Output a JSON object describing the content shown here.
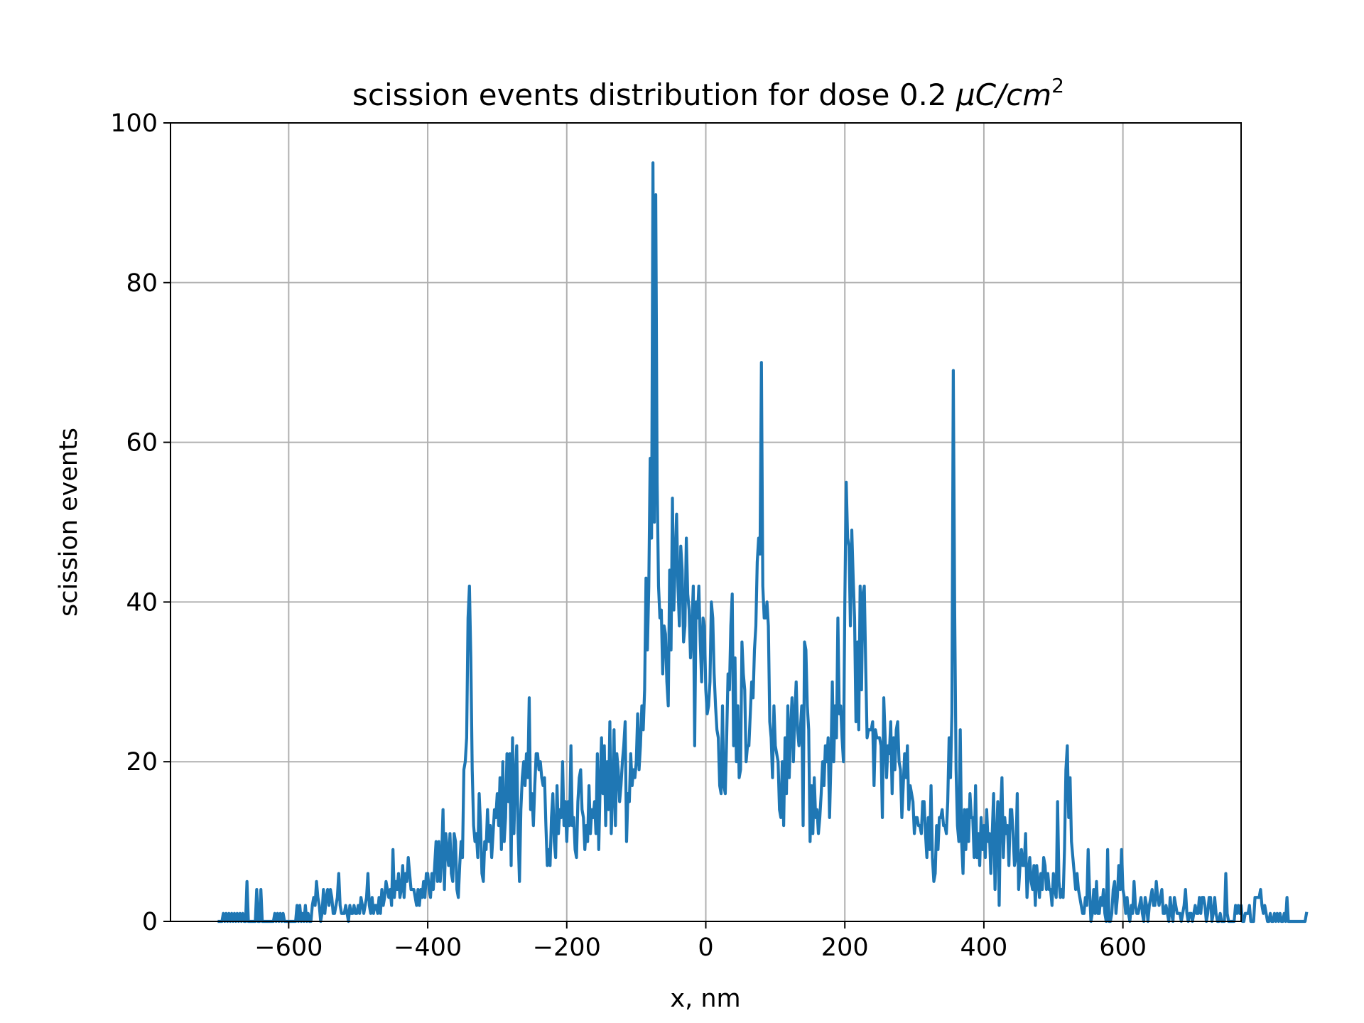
{
  "chart_data": {
    "type": "line",
    "title_main": "scission events distribution for dose 0.2 ",
    "title_math": "μC/cm",
    "title_sup": "2",
    "xlabel": "x, nm",
    "ylabel": "scission events",
    "xlim": [
      -770,
      770
    ],
    "ylim": [
      0,
      100
    ],
    "xticks": [
      -600,
      -400,
      -200,
      0,
      200,
      400,
      600
    ],
    "xtick_labels": [
      "−600",
      "−400",
      "−200",
      "0",
      "200",
      "400",
      "600"
    ],
    "yticks": [
      0,
      20,
      40,
      60,
      80,
      100
    ],
    "ytick_labels": [
      "0",
      "20",
      "40",
      "60",
      "80",
      "100"
    ],
    "grid": true,
    "legend": "none",
    "series": [
      {
        "color": "#1f77b4",
        "x_start": -700,
        "x_step": 2,
        "values": [
          0,
          0,
          0,
          1,
          0,
          1,
          0,
          1,
          0,
          1,
          0,
          1,
          0,
          1,
          0,
          1,
          0,
          1,
          0,
          0,
          5,
          0,
          0,
          0,
          0,
          0,
          0,
          4,
          0,
          0,
          4,
          0,
          0,
          0,
          0,
          0,
          0,
          0,
          0,
          0,
          1,
          0,
          1,
          0,
          1,
          0,
          1,
          0,
          0,
          0,
          0,
          0,
          0,
          0,
          0,
          0,
          2,
          0,
          2,
          0,
          1,
          0,
          2,
          0,
          1,
          0,
          0,
          2,
          3,
          2,
          5,
          3,
          2,
          0,
          1,
          4,
          1,
          3,
          4,
          2,
          4,
          3,
          1,
          1,
          2,
          3,
          6,
          2,
          1,
          1,
          1,
          2,
          1,
          0,
          2,
          1,
          1,
          2,
          1,
          1,
          2,
          1,
          3,
          2,
          1,
          2,
          3,
          6,
          2,
          1,
          3,
          1,
          2,
          2,
          1,
          3,
          1,
          4,
          2,
          3,
          5,
          4,
          3,
          4,
          2,
          9,
          3,
          5,
          4,
          6,
          3,
          4,
          7,
          3,
          6,
          5,
          8,
          6,
          4,
          4,
          4,
          3,
          2,
          4,
          2,
          4,
          3,
          5,
          3,
          6,
          6,
          4,
          3,
          6,
          4,
          7,
          10,
          5,
          10,
          5,
          8,
          14,
          4,
          11,
          9,
          7,
          11,
          6,
          5,
          11,
          10,
          4,
          3,
          7,
          10,
          8,
          19,
          20,
          23,
          38,
          42,
          33,
          19,
          12,
          10,
          11,
          8,
          16,
          12,
          6,
          5,
          10,
          9,
          14,
          10,
          12,
          8,
          11,
          14,
          13,
          16,
          12,
          18,
          9,
          20,
          10,
          13,
          21,
          15,
          21,
          7,
          23,
          11,
          18,
          22,
          11,
          5,
          14,
          18,
          20,
          17,
          21,
          18,
          28,
          14,
          16,
          12,
          17,
          21,
          21,
          19,
          20,
          18,
          17,
          18,
          12,
          7,
          9,
          7,
          13,
          16,
          10,
          8,
          17,
          11,
          14,
          13,
          20,
          12,
          15,
          10,
          15,
          12,
          22,
          12,
          13,
          9,
          8,
          15,
          18,
          19,
          14,
          13,
          9,
          12,
          10,
          17,
          11,
          14,
          13,
          15,
          11,
          21,
          9,
          17,
          23,
          16,
          22,
          12,
          20,
          14,
          25,
          11,
          16,
          24,
          12,
          21,
          19,
          15,
          17,
          20,
          22,
          25,
          10,
          16,
          15,
          21,
          17,
          19,
          18,
          20,
          26,
          19,
          22,
          27,
          24,
          29,
          43,
          34,
          42,
          58,
          48,
          95,
          50,
          91,
          55,
          42,
          38,
          39,
          31,
          37,
          36,
          30,
          27,
          44,
          34,
          53,
          39,
          45,
          51,
          42,
          37,
          47,
          44,
          35,
          37,
          48,
          41,
          39,
          33,
          37,
          42,
          22,
          40,
          38,
          42,
          35,
          30,
          38,
          37,
          29,
          26,
          27,
          30,
          40,
          38,
          31,
          27,
          24,
          23,
          17,
          16,
          27,
          17,
          16,
          23,
          31,
          29,
          37,
          41,
          22,
          33,
          20,
          27,
          18,
          19,
          35,
          31,
          29,
          20,
          22,
          22,
          26,
          30,
          28,
          34,
          37,
          45,
          48,
          46,
          70,
          42,
          38,
          38,
          40,
          37,
          25,
          23,
          18,
          27,
          22,
          21,
          20,
          14,
          13,
          20,
          12,
          23,
          16,
          27,
          18,
          24,
          28,
          20,
          26,
          30,
          24,
          22,
          24,
          27,
          12,
          35,
          34,
          27,
          24,
          10,
          17,
          11,
          18,
          13,
          14,
          11,
          13,
          16,
          20,
          17,
          22,
          20,
          23,
          13,
          20,
          30,
          20,
          27,
          23,
          38,
          26,
          27,
          23,
          20,
          40,
          55,
          48,
          47,
          37,
          49,
          43,
          38,
          25,
          35,
          24,
          42,
          29,
          41,
          42,
          32,
          23,
          24,
          24,
          24,
          25,
          17,
          24,
          23,
          23,
          23,
          22,
          13,
          28,
          23,
          18,
          22,
          21,
          25,
          16,
          23,
          19,
          24,
          25,
          20,
          19,
          13,
          17,
          21,
          18,
          22,
          14,
          17,
          16,
          15,
          11,
          13,
          13,
          12,
          12,
          11,
          15,
          15,
          11,
          8,
          13,
          9,
          17,
          8,
          5,
          6,
          12,
          9,
          13,
          13,
          14,
          12,
          12,
          11,
          15,
          23,
          18,
          26,
          69,
          39,
          19,
          12,
          10,
          24,
          10,
          6,
          14,
          9,
          14,
          10,
          16,
          13,
          13,
          8,
          17,
          8,
          11,
          7,
          13,
          9,
          12,
          8,
          14,
          10,
          11,
          6,
          11,
          16,
          4,
          10,
          15,
          2,
          14,
          18,
          8,
          13,
          11,
          12,
          7,
          14,
          14,
          11,
          7,
          8,
          16,
          4,
          7,
          9,
          7,
          7,
          11,
          3,
          6,
          8,
          5,
          4,
          7,
          2,
          7,
          5,
          3,
          6,
          4,
          8,
          7,
          4,
          6,
          4,
          4,
          2,
          6,
          4,
          3,
          15,
          5,
          3,
          4,
          3,
          9,
          19,
          22,
          13,
          18,
          10,
          8,
          6,
          4,
          6,
          4,
          3,
          2,
          1,
          1,
          3,
          2,
          9,
          4,
          0,
          1,
          4,
          1,
          5,
          1,
          1,
          3,
          2,
          4,
          1,
          0,
          9,
          0,
          0,
          1,
          4,
          5,
          1,
          3,
          7,
          4,
          9,
          4,
          3,
          1,
          3,
          1,
          0,
          2,
          1,
          5,
          2,
          1,
          1,
          2,
          3,
          1,
          0,
          3,
          2,
          0,
          2,
          3,
          4,
          2,
          2,
          5,
          3,
          2,
          3,
          4,
          1,
          1,
          2,
          1,
          0,
          3,
          1,
          0,
          3,
          2,
          1,
          1,
          1,
          0,
          1,
          2,
          4,
          1,
          0,
          1,
          1,
          0,
          1,
          2,
          1,
          1,
          3,
          1,
          3,
          3,
          2,
          0,
          1,
          3,
          3,
          0,
          1,
          3,
          1,
          0,
          0,
          1,
          0,
          0,
          0,
          6,
          1,
          0,
          0,
          0,
          0,
          0,
          2,
          1,
          2,
          1,
          2,
          0,
          0,
          1,
          1,
          1,
          2,
          0,
          0,
          0,
          3,
          3,
          3,
          3,
          4,
          2,
          1,
          2,
          1,
          0,
          0,
          1,
          0,
          0,
          1,
          0,
          1,
          0,
          1,
          0,
          0,
          1,
          0,
          3,
          0,
          0,
          0,
          0,
          0,
          0,
          0,
          0,
          0,
          0,
          0,
          0,
          0,
          1
        ]
      }
    ]
  }
}
